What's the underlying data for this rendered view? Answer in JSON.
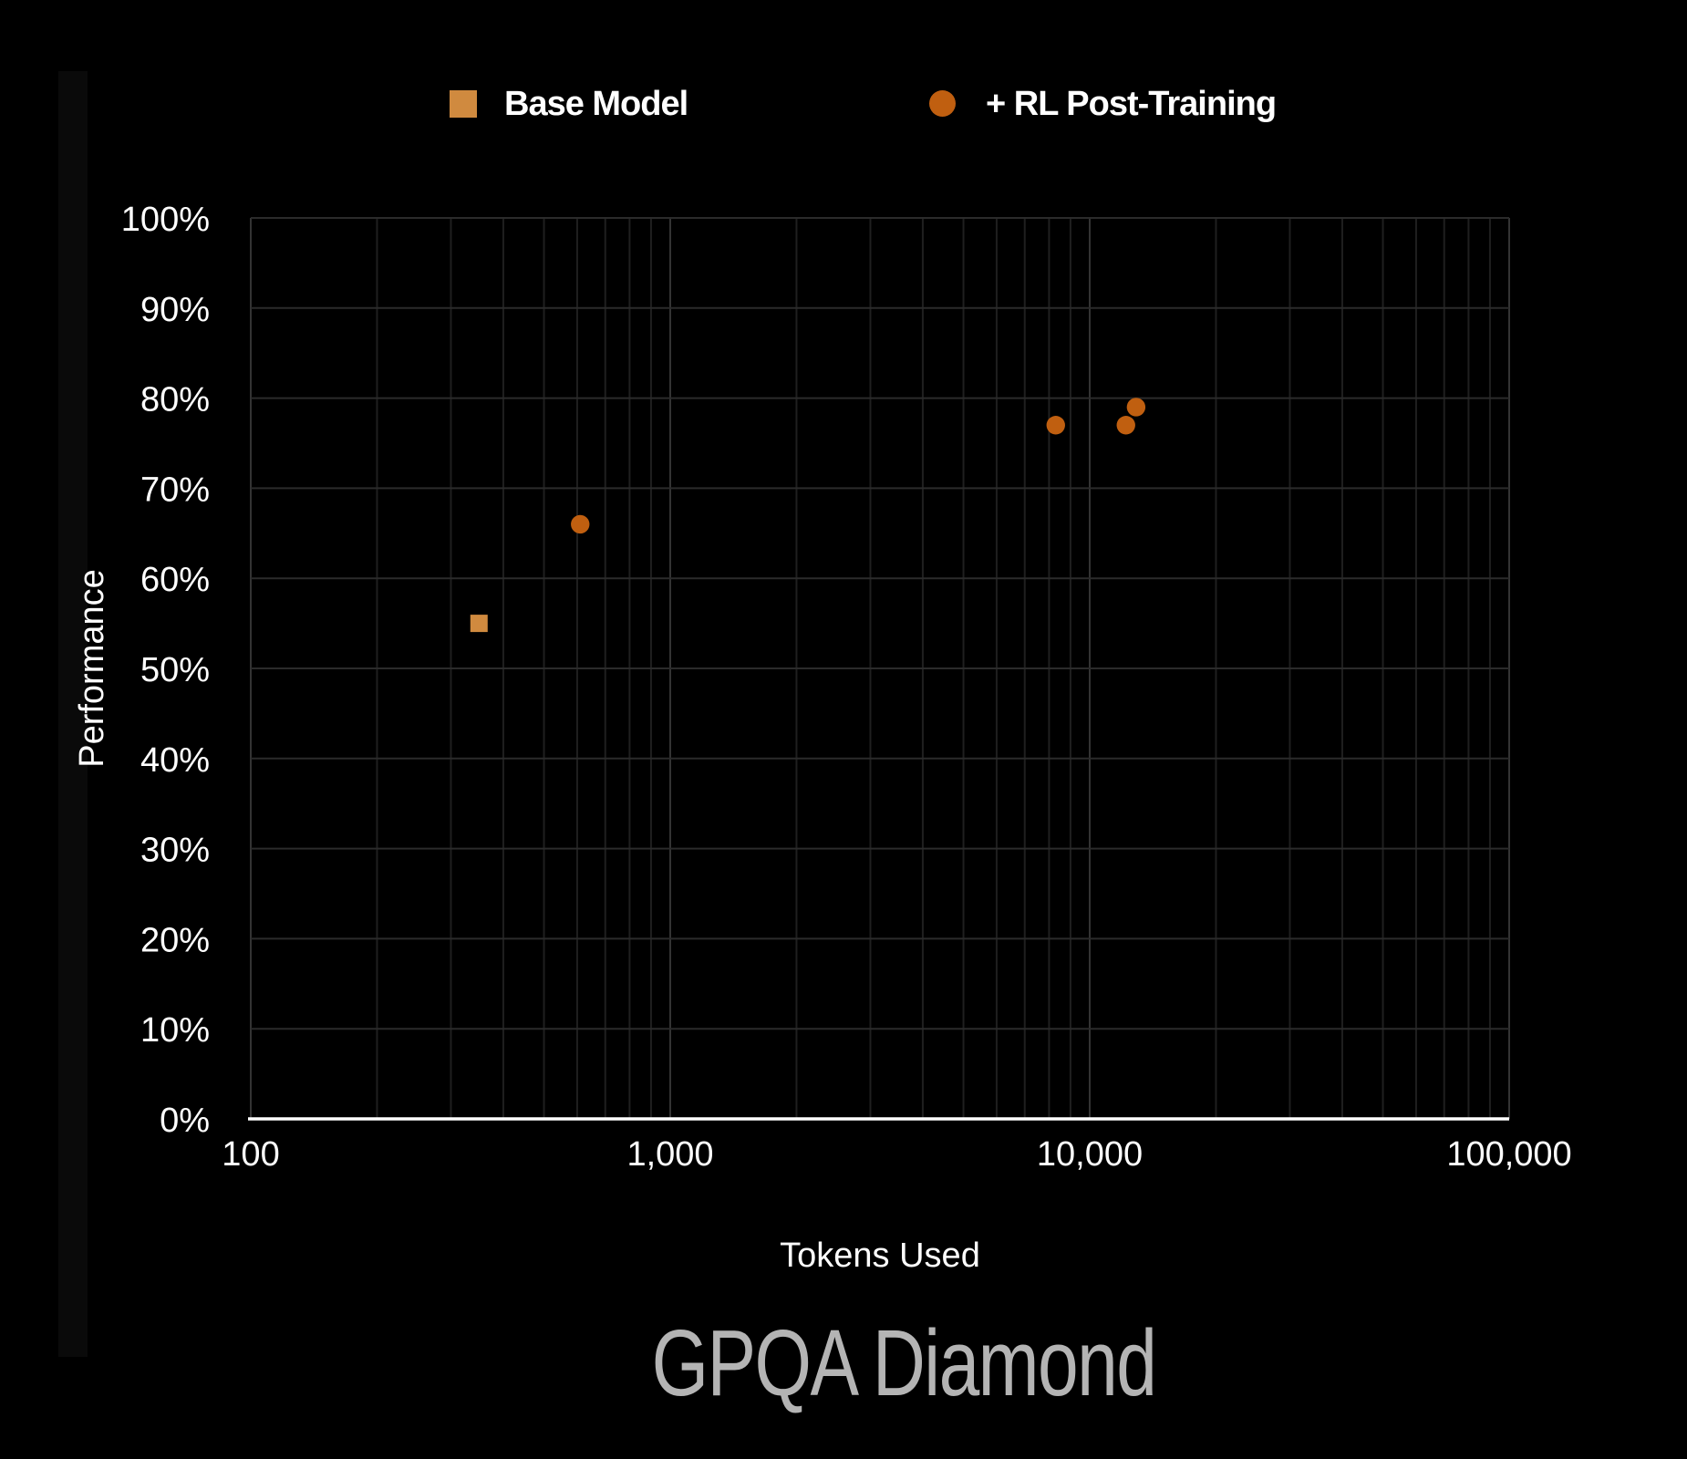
{
  "title": "GPQA Diamond",
  "legend": [
    {
      "label": "Base Model",
      "marker": "square",
      "color": "#D08A3F"
    },
    {
      "label": "+ RL Post-Training",
      "marker": "circle",
      "color": "#C05F10"
    }
  ],
  "chart_data": {
    "type": "scatter",
    "title": "GPQA Diamond",
    "xlabel": "Tokens Used",
    "ylabel": "Performance",
    "x_scale": "log",
    "xlim": [
      100,
      100000
    ],
    "ylim": [
      0,
      100
    ],
    "x_ticks": [
      {
        "value": 100,
        "label": "100"
      },
      {
        "value": 1000,
        "label": "1,000"
      },
      {
        "value": 10000,
        "label": "10,000"
      },
      {
        "value": 100000,
        "label": "100,000"
      }
    ],
    "y_ticks": [
      {
        "value": 0,
        "label": "0%"
      },
      {
        "value": 10,
        "label": "10%"
      },
      {
        "value": 20,
        "label": "20%"
      },
      {
        "value": 30,
        "label": "30%"
      },
      {
        "value": 40,
        "label": "40%"
      },
      {
        "value": 50,
        "label": "50%"
      },
      {
        "value": 60,
        "label": "60%"
      },
      {
        "value": 70,
        "label": "70%"
      },
      {
        "value": 80,
        "label": "80%"
      },
      {
        "value": 90,
        "label": "90%"
      },
      {
        "value": 100,
        "label": "100%"
      }
    ],
    "grid": true,
    "series": [
      {
        "name": "Base Model",
        "marker": "square",
        "color": "#D08A3F",
        "points": [
          {
            "x": 350,
            "y": 55
          }
        ]
      },
      {
        "name": "+ RL Post-Training",
        "marker": "circle",
        "color": "#C05F10",
        "points": [
          {
            "x": 610,
            "y": 66
          },
          {
            "x": 8300,
            "y": 77
          },
          {
            "x": 12200,
            "y": 77
          },
          {
            "x": 12900,
            "y": 79
          }
        ]
      }
    ]
  },
  "colors": {
    "background": "#000000",
    "grid_minor": "#1f1f1f",
    "grid_major": "#333333",
    "grid_horizontal": "#2b2b2b",
    "axis_line": "#ffffff",
    "text": "#ffffff",
    "title_text": "#b4b4b4"
  }
}
